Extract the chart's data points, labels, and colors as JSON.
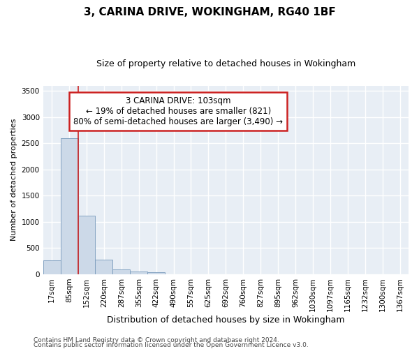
{
  "title": "3, CARINA DRIVE, WOKINGHAM, RG40 1BF",
  "subtitle": "Size of property relative to detached houses in Wokingham",
  "xlabel": "Distribution of detached houses by size in Wokingham",
  "ylabel": "Number of detached properties",
  "bar_color": "#ccd9e8",
  "bar_edge_color": "#7799bb",
  "background_color": "#e8eef5",
  "grid_color": "#ffffff",
  "vline_color": "#cc2222",
  "vline_x": 1.5,
  "annotation_line1": "3 CARINA DRIVE: 103sqm",
  "annotation_line2": "← 19% of detached houses are smaller (821)",
  "annotation_line3": "80% of semi-detached houses are larger (3,490) →",
  "categories": [
    "17sqm",
    "85sqm",
    "152sqm",
    "220sqm",
    "287sqm",
    "355sqm",
    "422sqm",
    "490sqm",
    "557sqm",
    "625sqm",
    "692sqm",
    "760sqm",
    "827sqm",
    "895sqm",
    "962sqm",
    "1030sqm",
    "1097sqm",
    "1165sqm",
    "1232sqm",
    "1300sqm",
    "1367sqm"
  ],
  "values": [
    260,
    2600,
    1120,
    275,
    90,
    50,
    35,
    0,
    0,
    0,
    0,
    0,
    0,
    0,
    0,
    0,
    0,
    0,
    0,
    0,
    0
  ],
  "ylim": [
    0,
    3600
  ],
  "yticks": [
    0,
    500,
    1000,
    1500,
    2000,
    2500,
    3000,
    3500
  ],
  "footer_line1": "Contains HM Land Registry data © Crown copyright and database right 2024.",
  "footer_line2": "Contains public sector information licensed under the Open Government Licence v3.0.",
  "title_fontsize": 11,
  "subtitle_fontsize": 9,
  "ylabel_fontsize": 8,
  "xlabel_fontsize": 9,
  "tick_fontsize": 7.5,
  "footer_fontsize": 6.5
}
